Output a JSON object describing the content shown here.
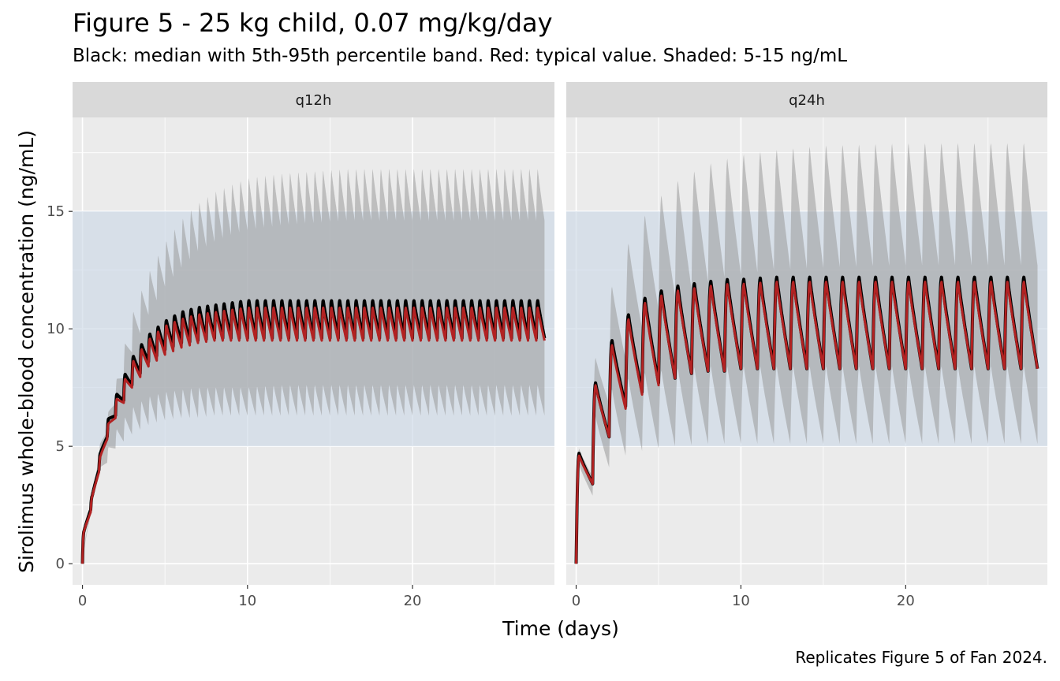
{
  "title": "Figure 5 - 25 kg child, 0.07 mg/kg/day",
  "subtitle": "Black: median with 5th-95th percentile band. Red: typical value. Shaded: 5-15 ng/mL",
  "caption": "Replicates Figure 5 of Fan 2024.",
  "colors": {
    "panel_bg": "#ebebeb",
    "strip_bg": "#d9d9d9",
    "grid": "#ffffff",
    "target_band": "#cdd9e6",
    "percentile_band": "#999999",
    "median": "#000000",
    "typical": "#b22222"
  },
  "chart_data": {
    "type": "line",
    "xlabel": "Time (days)",
    "ylabel": "Sirolimus whole-blood concentration (ng/mL)",
    "xlim": [
      -0.6,
      28.6
    ],
    "ylim": [
      -0.9,
      19.0
    ],
    "x_ticks": [
      0,
      10,
      20
    ],
    "x_tick_labels": [
      "0",
      "10",
      "20"
    ],
    "y_ticks": [
      0,
      5,
      10,
      15
    ],
    "y_tick_labels": [
      "0",
      "5",
      "10",
      "15"
    ],
    "grid": true,
    "target_range": [
      5,
      15
    ],
    "panels": [
      {
        "label": "q12h",
        "dose_interval_days": 0.5,
        "x_end": 28,
        "series": [
          {
            "role": "median",
            "x": [
              0,
              0.1,
              0.25,
              0.5,
              1,
              1.5,
              2,
              3,
              4,
              5,
              6,
              7,
              8,
              9,
              10,
              12,
              14,
              16,
              20,
              24,
              27.5
            ],
            "peak": [
              0,
              1.2,
              2.2,
              2.4,
              4.3,
              5.9,
              7.0,
              8.7,
              9.7,
              10.3,
              10.7,
              10.9,
              11.0,
              11.1,
              11.2,
              11.2,
              11.2,
              11.2,
              11.2,
              11.2,
              11.2
            ],
            "trough": [
              0,
              1.1,
              2.2,
              2.3,
              4.0,
              5.4,
              6.3,
              7.6,
              8.6,
              9.1,
              9.4,
              9.5,
              9.6,
              9.6,
              9.6,
              9.6,
              9.6,
              9.6,
              9.6,
              9.6,
              9.6
            ]
          },
          {
            "role": "typical",
            "x": [
              0,
              0.1,
              0.25,
              0.5,
              1,
              1.5,
              2,
              3,
              4,
              5,
              6,
              7,
              8,
              9,
              10,
              12,
              14,
              16,
              20,
              24,
              27.5
            ],
            "peak": [
              0,
              1.2,
              2.2,
              2.4,
              4.2,
              5.7,
              6.8,
              8.5,
              9.5,
              10.1,
              10.4,
              10.6,
              10.7,
              10.8,
              10.9,
              10.9,
              10.9,
              10.9,
              10.9,
              10.9,
              10.9
            ],
            "trough": [
              0,
              1.1,
              2.2,
              2.2,
              3.9,
              5.3,
              6.2,
              7.5,
              8.4,
              8.9,
              9.2,
              9.4,
              9.5,
              9.5,
              9.5,
              9.5,
              9.5,
              9.5,
              9.5,
              9.5,
              9.5
            ]
          },
          {
            "role": "p95",
            "x": [
              0,
              0.5,
              1,
              2,
              3,
              4,
              5,
              6,
              7,
              8,
              9,
              10,
              12,
              14,
              16,
              20,
              24,
              27.5
            ],
            "peak": [
              0,
              2.5,
              4.8,
              7.5,
              10.5,
              12.3,
              13.6,
              14.6,
              15.3,
              15.8,
              16.1,
              16.4,
              16.6,
              16.7,
              16.8,
              16.8,
              16.8,
              16.8
            ],
            "trough": [
              0,
              2.3,
              4.4,
              6.8,
              9.0,
              10.6,
              11.8,
              12.6,
              13.3,
              13.7,
              14.0,
              14.2,
              14.4,
              14.5,
              14.6,
              14.6,
              14.6,
              14.6
            ]
          },
          {
            "role": "p05",
            "x": [
              0,
              0.5,
              1,
              2,
              3,
              4,
              5,
              6,
              7,
              8,
              9,
              10,
              12,
              14,
              16,
              20,
              24,
              27.5
            ],
            "peak": [
              0,
              2.2,
              3.9,
              5.6,
              6.6,
              7.1,
              7.3,
              7.4,
              7.5,
              7.5,
              7.5,
              7.5,
              7.6,
              7.6,
              7.6,
              7.6,
              7.6,
              7.6
            ],
            "trough": [
              0,
              2.1,
              3.7,
              4.9,
              5.5,
              5.9,
              6.1,
              6.2,
              6.2,
              6.3,
              6.3,
              6.3,
              6.3,
              6.3,
              6.3,
              6.3,
              6.3,
              6.3
            ]
          }
        ]
      },
      {
        "label": "q24h",
        "dose_interval_days": 1,
        "x_end": 28,
        "series": [
          {
            "role": "median",
            "x": [
              0,
              0.2,
              1,
              1.2,
              2,
              2.2,
              3,
              3.2,
              4,
              4.2,
              5,
              5.2,
              6,
              7,
              8,
              9,
              10,
              12,
              15,
              20,
              25,
              27.2
            ],
            "peak": [
              0,
              4.7,
              4.7,
              7.7,
              7.7,
              9.5,
              9.5,
              10.6,
              10.6,
              11.3,
              11.3,
              11.6,
              11.8,
              11.9,
              12.0,
              12.1,
              12.1,
              12.2,
              12.2,
              12.2,
              12.2,
              12.2
            ],
            "trough": [
              0,
              4.7,
              3.4,
              3.4,
              5.4,
              5.4,
              6.7,
              6.7,
              7.3,
              7.3,
              7.7,
              7.7,
              7.9,
              8.1,
              8.2,
              8.2,
              8.3,
              8.3,
              8.3,
              8.3,
              8.3,
              8.3
            ]
          },
          {
            "role": "typical",
            "x": [
              0,
              0.2,
              1,
              1.2,
              2,
              2.2,
              3,
              3.2,
              4,
              4.2,
              5,
              5.2,
              6,
              7,
              8,
              9,
              10,
              12,
              15,
              20,
              25,
              27.2
            ],
            "peak": [
              0,
              4.6,
              4.6,
              7.6,
              7.6,
              9.3,
              9.3,
              10.4,
              10.4,
              11.1,
              11.1,
              11.4,
              11.6,
              11.7,
              11.8,
              11.9,
              11.9,
              12.0,
              12.0,
              12.0,
              12.0,
              12.0
            ],
            "trough": [
              0,
              4.6,
              3.4,
              3.4,
              5.4,
              5.4,
              6.6,
              6.6,
              7.2,
              7.2,
              7.6,
              7.6,
              7.9,
              8.1,
              8.2,
              8.2,
              8.3,
              8.3,
              8.3,
              8.3,
              8.3,
              8.3
            ]
          },
          {
            "role": "p95",
            "x": [
              0,
              0.2,
              1,
              1.2,
              2,
              3,
              4,
              5,
              6,
              7,
              8,
              9,
              10,
              12,
              15,
              20,
              25,
              27.2
            ],
            "peak": [
              0,
              4.9,
              4.9,
              8.6,
              11.3,
              13.3,
              14.6,
              15.5,
              16.2,
              16.6,
              17.0,
              17.2,
              17.4,
              17.6,
              17.8,
              17.9,
              17.9,
              17.9
            ],
            "trough": [
              0,
              4.9,
              3.7,
              3.7,
              6.8,
              8.7,
              10.0,
              10.8,
              11.4,
              11.7,
              12.0,
              12.2,
              12.3,
              12.5,
              12.6,
              12.7,
              12.7,
              12.7
            ]
          },
          {
            "role": "p05",
            "x": [
              0,
              0.2,
              1,
              1.2,
              2,
              3,
              4,
              5,
              6,
              8,
              10,
              15,
              20,
              25,
              27.2
            ],
            "peak": [
              0,
              4.2,
              4.2,
              6.2,
              7.3,
              7.8,
              8.1,
              8.2,
              8.3,
              8.4,
              8.4,
              8.4,
              8.4,
              8.4,
              8.4
            ],
            "trough": [
              0,
              4.2,
              2.9,
              2.9,
              4.1,
              4.6,
              4.8,
              4.9,
              5.0,
              5.1,
              5.1,
              5.1,
              5.1,
              5.1,
              5.1
            ]
          }
        ]
      }
    ]
  }
}
